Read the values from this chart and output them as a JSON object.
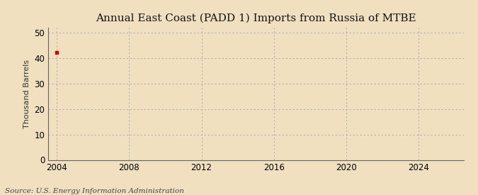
{
  "title": "Annual East Coast (PADD 1) Imports from Russia of MTBE",
  "ylabel": "Thousand Barrels",
  "source_text": "Source: U.S. Energy Information Administration",
  "background_color": "#f0e0c0",
  "plot_background_color": "#f0e0c0",
  "data_x": [
    2004
  ],
  "data_y": [
    42
  ],
  "data_color": "#cc0000",
  "xmin": 2003.5,
  "xmax": 2026.5,
  "ymin": 0,
  "ymax": 52,
  "yticks": [
    0,
    10,
    20,
    30,
    40,
    50
  ],
  "xticks": [
    2004,
    2008,
    2012,
    2016,
    2020,
    2024
  ],
  "grid_color": "#aaaaaa",
  "title_fontsize": 11,
  "ylabel_fontsize": 8,
  "tick_fontsize": 8.5,
  "source_fontsize": 7.5,
  "marker_size": 3
}
